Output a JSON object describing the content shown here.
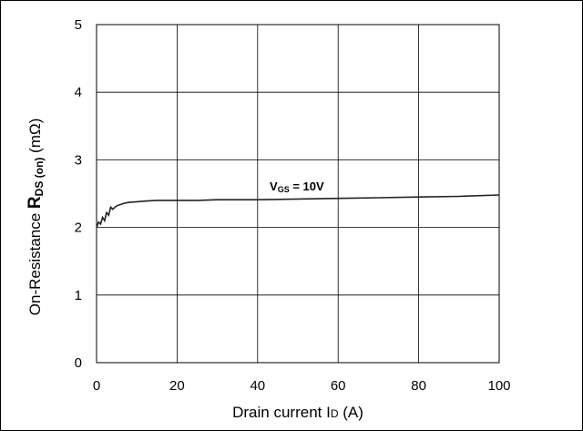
{
  "chart_data": {
    "type": "line",
    "xlabel": {
      "main": "Drain current I",
      "sub": "D",
      "unit": " (A)"
    },
    "ylabel": {
      "pre": "On-Resistance ",
      "main": "R",
      "sub": "DS (on)",
      "unit": " (mΩ)"
    },
    "xlim": [
      0,
      100
    ],
    "ylim": [
      0,
      5
    ],
    "x_ticks": [
      "0",
      "20",
      "40",
      "60",
      "80",
      "100"
    ],
    "y_ticks": [
      "0",
      "1",
      "2",
      "3",
      "4",
      "5"
    ],
    "grid": true,
    "annotation": {
      "main": "V",
      "sub": "GS",
      "rest": " = 10V",
      "x": 43,
      "y": 2.55
    },
    "series": [
      {
        "x": [
          0,
          0.5,
          1,
          1.5,
          2,
          2.5,
          3,
          3.5,
          4,
          5,
          6,
          7,
          8,
          10,
          12,
          15,
          20,
          25,
          30,
          40,
          50,
          60,
          70,
          80,
          90,
          100
        ],
        "y": [
          2.0,
          2.08,
          2.05,
          2.15,
          2.1,
          2.22,
          2.18,
          2.3,
          2.27,
          2.32,
          2.34,
          2.36,
          2.37,
          2.38,
          2.39,
          2.4,
          2.4,
          2.4,
          2.41,
          2.41,
          2.42,
          2.43,
          2.44,
          2.45,
          2.46,
          2.48
        ]
      }
    ]
  }
}
